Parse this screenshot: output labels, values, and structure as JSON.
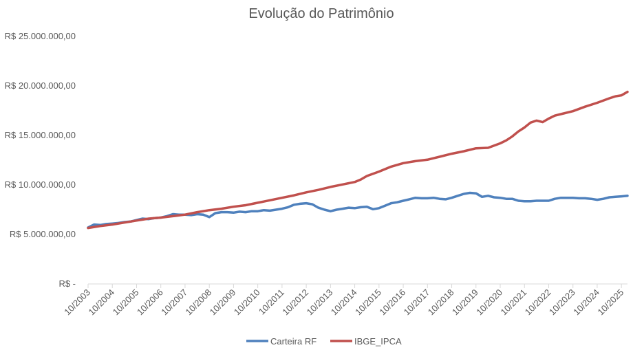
{
  "chart_data": {
    "type": "line",
    "title": "Evolução do Patrimônio",
    "xlabel": "",
    "ylabel": "",
    "grid": false,
    "legend_position": "bottom",
    "ylim": [
      0,
      25000000
    ],
    "y_ticks": [
      {
        "value": 0,
        "label": "R$ -"
      },
      {
        "value": 5000000,
        "label": "R$ 5.000.000,00"
      },
      {
        "value": 10000000,
        "label": "R$ 10.000.000,00"
      },
      {
        "value": 15000000,
        "label": "R$ 15.000.000,00"
      },
      {
        "value": 20000000,
        "label": "R$ 20.000.000,00"
      },
      {
        "value": 25000000,
        "label": "R$ 25.000.000,00"
      }
    ],
    "xlim": [
      2003.75,
      2026.0
    ],
    "x_ticks": [
      {
        "value": 2003.75,
        "label": "10/2003"
      },
      {
        "value": 2004.75,
        "label": "10/2004"
      },
      {
        "value": 2005.75,
        "label": "10/2005"
      },
      {
        "value": 2006.75,
        "label": "10/2006"
      },
      {
        "value": 2007.75,
        "label": "10/2007"
      },
      {
        "value": 2008.75,
        "label": "10/2008"
      },
      {
        "value": 2009.75,
        "label": "10/2009"
      },
      {
        "value": 2010.75,
        "label": "10/2010"
      },
      {
        "value": 2011.75,
        "label": "10/2011"
      },
      {
        "value": 2012.75,
        "label": "10/2012"
      },
      {
        "value": 2013.75,
        "label": "10/2013"
      },
      {
        "value": 2014.75,
        "label": "10/2014"
      },
      {
        "value": 2015.75,
        "label": "10/2015"
      },
      {
        "value": 2016.75,
        "label": "10/2016"
      },
      {
        "value": 2017.75,
        "label": "10/2017"
      },
      {
        "value": 2018.75,
        "label": "10/2018"
      },
      {
        "value": 2019.75,
        "label": "10/2019"
      },
      {
        "value": 2020.75,
        "label": "10/2020"
      },
      {
        "value": 2021.75,
        "label": "10/2021"
      },
      {
        "value": 2022.75,
        "label": "10/2022"
      },
      {
        "value": 2023.75,
        "label": "10/2023"
      },
      {
        "value": 2024.75,
        "label": "10/2024"
      },
      {
        "value": 2025.75,
        "label": "10/2025"
      }
    ],
    "series": [
      {
        "name": "Carteira RF",
        "color": "#4f81bd",
        "points": [
          [
            2003.75,
            5700000
          ],
          [
            2004.0,
            6000000
          ],
          [
            2004.25,
            5950000
          ],
          [
            2004.5,
            6050000
          ],
          [
            2004.75,
            6100000
          ],
          [
            2005.0,
            6150000
          ],
          [
            2005.25,
            6250000
          ],
          [
            2005.5,
            6300000
          ],
          [
            2005.75,
            6450000
          ],
          [
            2006.0,
            6600000
          ],
          [
            2006.25,
            6550000
          ],
          [
            2006.5,
            6650000
          ],
          [
            2006.75,
            6700000
          ],
          [
            2007.0,
            6850000
          ],
          [
            2007.25,
            7050000
          ],
          [
            2007.5,
            7000000
          ],
          [
            2007.75,
            7000000
          ],
          [
            2008.0,
            6950000
          ],
          [
            2008.25,
            7050000
          ],
          [
            2008.5,
            7000000
          ],
          [
            2008.75,
            6750000
          ],
          [
            2009.0,
            7150000
          ],
          [
            2009.25,
            7250000
          ],
          [
            2009.5,
            7250000
          ],
          [
            2009.75,
            7200000
          ],
          [
            2010.0,
            7300000
          ],
          [
            2010.25,
            7250000
          ],
          [
            2010.5,
            7350000
          ],
          [
            2010.75,
            7350000
          ],
          [
            2011.0,
            7450000
          ],
          [
            2011.25,
            7400000
          ],
          [
            2011.5,
            7500000
          ],
          [
            2011.75,
            7600000
          ],
          [
            2012.0,
            7750000
          ],
          [
            2012.25,
            8000000
          ],
          [
            2012.5,
            8100000
          ],
          [
            2012.75,
            8150000
          ],
          [
            2013.0,
            8050000
          ],
          [
            2013.25,
            7700000
          ],
          [
            2013.5,
            7500000
          ],
          [
            2013.75,
            7350000
          ],
          [
            2014.0,
            7500000
          ],
          [
            2014.25,
            7600000
          ],
          [
            2014.5,
            7700000
          ],
          [
            2014.75,
            7650000
          ],
          [
            2015.0,
            7750000
          ],
          [
            2015.25,
            7800000
          ],
          [
            2015.5,
            7550000
          ],
          [
            2015.75,
            7650000
          ],
          [
            2016.0,
            7900000
          ],
          [
            2016.25,
            8150000
          ],
          [
            2016.5,
            8250000
          ],
          [
            2016.75,
            8400000
          ],
          [
            2017.0,
            8550000
          ],
          [
            2017.25,
            8700000
          ],
          [
            2017.5,
            8650000
          ],
          [
            2017.75,
            8650000
          ],
          [
            2018.0,
            8700000
          ],
          [
            2018.25,
            8600000
          ],
          [
            2018.5,
            8550000
          ],
          [
            2018.75,
            8700000
          ],
          [
            2019.0,
            8900000
          ],
          [
            2019.25,
            9100000
          ],
          [
            2019.5,
            9200000
          ],
          [
            2019.75,
            9150000
          ],
          [
            2020.0,
            8800000
          ],
          [
            2020.25,
            8900000
          ],
          [
            2020.5,
            8750000
          ],
          [
            2020.75,
            8700000
          ],
          [
            2021.0,
            8600000
          ],
          [
            2021.25,
            8600000
          ],
          [
            2021.5,
            8400000
          ],
          [
            2021.75,
            8350000
          ],
          [
            2022.0,
            8350000
          ],
          [
            2022.25,
            8400000
          ],
          [
            2022.5,
            8400000
          ],
          [
            2022.75,
            8400000
          ],
          [
            2023.0,
            8600000
          ],
          [
            2023.25,
            8700000
          ],
          [
            2023.5,
            8700000
          ],
          [
            2023.75,
            8700000
          ],
          [
            2024.0,
            8650000
          ],
          [
            2024.25,
            8650000
          ],
          [
            2024.5,
            8600000
          ],
          [
            2024.75,
            8500000
          ],
          [
            2025.0,
            8600000
          ],
          [
            2025.25,
            8750000
          ],
          [
            2025.5,
            8800000
          ],
          [
            2025.75,
            8850000
          ],
          [
            2026.0,
            8900000
          ]
        ]
      },
      {
        "name": "IBGE_IPCA",
        "color": "#c0504d",
        "points": [
          [
            2003.75,
            5650000
          ],
          [
            2004.25,
            5850000
          ],
          [
            2004.75,
            6000000
          ],
          [
            2005.25,
            6200000
          ],
          [
            2005.75,
            6400000
          ],
          [
            2006.25,
            6600000
          ],
          [
            2006.75,
            6700000
          ],
          [
            2007.25,
            6850000
          ],
          [
            2007.75,
            7000000
          ],
          [
            2008.25,
            7250000
          ],
          [
            2008.75,
            7450000
          ],
          [
            2009.25,
            7600000
          ],
          [
            2009.75,
            7800000
          ],
          [
            2010.25,
            7950000
          ],
          [
            2010.75,
            8200000
          ],
          [
            2011.25,
            8450000
          ],
          [
            2011.75,
            8700000
          ],
          [
            2012.25,
            8950000
          ],
          [
            2012.75,
            9250000
          ],
          [
            2013.25,
            9500000
          ],
          [
            2013.75,
            9800000
          ],
          [
            2014.25,
            10050000
          ],
          [
            2014.75,
            10300000
          ],
          [
            2015.0,
            10550000
          ],
          [
            2015.25,
            10900000
          ],
          [
            2015.75,
            11350000
          ],
          [
            2016.25,
            11850000
          ],
          [
            2016.75,
            12200000
          ],
          [
            2017.25,
            12400000
          ],
          [
            2017.75,
            12550000
          ],
          [
            2018.25,
            12850000
          ],
          [
            2018.75,
            13150000
          ],
          [
            2019.25,
            13400000
          ],
          [
            2019.75,
            13700000
          ],
          [
            2020.25,
            13750000
          ],
          [
            2020.75,
            14200000
          ],
          [
            2021.0,
            14500000
          ],
          [
            2021.25,
            14900000
          ],
          [
            2021.5,
            15400000
          ],
          [
            2021.75,
            15800000
          ],
          [
            2022.0,
            16300000
          ],
          [
            2022.25,
            16500000
          ],
          [
            2022.5,
            16350000
          ],
          [
            2022.75,
            16700000
          ],
          [
            2023.0,
            17000000
          ],
          [
            2023.25,
            17150000
          ],
          [
            2023.75,
            17450000
          ],
          [
            2024.25,
            17900000
          ],
          [
            2024.75,
            18300000
          ],
          [
            2025.25,
            18750000
          ],
          [
            2025.5,
            18950000
          ],
          [
            2025.75,
            19050000
          ],
          [
            2026.0,
            19400000
          ]
        ]
      }
    ]
  }
}
